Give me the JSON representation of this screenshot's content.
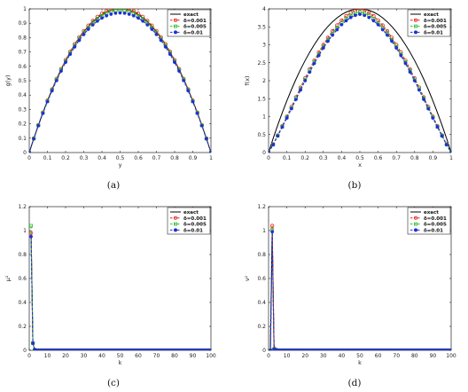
{
  "chart_data": [
    {
      "type": "line",
      "caption": "(a)",
      "xlabel": "y",
      "ylabel": "g(y)",
      "xlim": [
        0,
        1
      ],
      "ylim": [
        0,
        1
      ],
      "xticks": [
        "0",
        "0.1",
        "0.2",
        "0.3",
        "0.4",
        "0.5",
        "0.6",
        "0.7",
        "0.8",
        "0.9",
        "1"
      ],
      "yticks": [
        "0",
        "0.1",
        "0.2",
        "0.3",
        "0.4",
        "0.5",
        "0.6",
        "0.7",
        "0.8",
        "0.9",
        "1"
      ],
      "legend_placement": "top-right",
      "x": [
        0,
        0.025,
        0.05,
        0.075,
        0.1,
        0.125,
        0.15,
        0.175,
        0.2,
        0.225,
        0.25,
        0.275,
        0.3,
        0.325,
        0.35,
        0.375,
        0.4,
        0.425,
        0.45,
        0.475,
        0.5,
        0.525,
        0.55,
        0.575,
        0.6,
        0.625,
        0.65,
        0.675,
        0.7,
        0.725,
        0.75,
        0.775,
        0.8,
        0.825,
        0.85,
        0.875,
        0.9,
        0.925,
        0.95,
        0.975,
        1
      ],
      "series": [
        {
          "name": "exact",
          "color": "#000000",
          "style": "solid",
          "marker": "none",
          "values": [
            0,
            0.0975,
            0.19,
            0.2775,
            0.36,
            0.4375,
            0.51,
            0.5775,
            0.64,
            0.6975,
            0.75,
            0.7975,
            0.84,
            0.8775,
            0.91,
            0.9375,
            0.96,
            0.9775,
            0.99,
            0.9975,
            1,
            0.9975,
            0.99,
            0.9775,
            0.96,
            0.9375,
            0.91,
            0.8775,
            0.84,
            0.7975,
            0.75,
            0.6975,
            0.64,
            0.5775,
            0.51,
            0.4375,
            0.36,
            0.2775,
            0.19,
            0.0975,
            0
          ]
        },
        {
          "name": "δ=0.001",
          "color": "#e8251f",
          "style": "dashed",
          "marker": "circle",
          "values": [
            0,
            0.098,
            0.191,
            0.279,
            0.362,
            0.44,
            0.513,
            0.581,
            0.644,
            0.702,
            0.755,
            0.803,
            0.846,
            0.884,
            0.917,
            0.945,
            0.968,
            0.986,
            0.998,
            1.005,
            1.008,
            1.005,
            0.998,
            0.986,
            0.968,
            0.945,
            0.917,
            0.884,
            0.846,
            0.803,
            0.755,
            0.702,
            0.644,
            0.581,
            0.513,
            0.44,
            0.362,
            0.279,
            0.191,
            0.098,
            0
          ]
        },
        {
          "name": "δ=0.005",
          "color": "#2ebd2e",
          "style": "dashed",
          "marker": "square",
          "values": [
            0,
            0.097,
            0.189,
            0.276,
            0.358,
            0.435,
            0.507,
            0.574,
            0.636,
            0.693,
            0.745,
            0.792,
            0.834,
            0.871,
            0.903,
            0.93,
            0.952,
            0.969,
            0.981,
            0.988,
            0.99,
            0.988,
            0.981,
            0.969,
            0.952,
            0.93,
            0.903,
            0.871,
            0.834,
            0.792,
            0.745,
            0.693,
            0.636,
            0.574,
            0.507,
            0.435,
            0.358,
            0.276,
            0.189,
            0.097,
            0
          ]
        },
        {
          "name": "δ=0.01",
          "color": "#1f2fd8",
          "style": "dashed",
          "marker": "circle",
          "values": [
            0,
            0.096,
            0.187,
            0.273,
            0.354,
            0.43,
            0.501,
            0.567,
            0.628,
            0.684,
            0.735,
            0.781,
            0.822,
            0.858,
            0.889,
            0.915,
            0.936,
            0.952,
            0.963,
            0.97,
            0.972,
            0.97,
            0.963,
            0.952,
            0.936,
            0.915,
            0.889,
            0.858,
            0.822,
            0.781,
            0.735,
            0.684,
            0.628,
            0.567,
            0.501,
            0.43,
            0.354,
            0.273,
            0.187,
            0.096,
            0
          ]
        }
      ]
    },
    {
      "type": "line",
      "caption": "(b)",
      "xlabel": "x",
      "ylabel": "f(x)",
      "xlim": [
        0,
        1
      ],
      "ylim": [
        0,
        4
      ],
      "xticks": [
        "0",
        "0.1",
        "0.2",
        "0.3",
        "0.4",
        "0.5",
        "0.6",
        "0.7",
        "0.8",
        "0.9",
        "1"
      ],
      "yticks": [
        "0",
        "0.5",
        "1",
        "1.5",
        "2",
        "2.5",
        "3",
        "3.5",
        "4"
      ],
      "legend_placement": "top-right",
      "x": [
        0,
        0.025,
        0.05,
        0.075,
        0.1,
        0.125,
        0.15,
        0.175,
        0.2,
        0.225,
        0.25,
        0.275,
        0.3,
        0.325,
        0.35,
        0.375,
        0.4,
        0.425,
        0.45,
        0.475,
        0.5,
        0.525,
        0.55,
        0.575,
        0.6,
        0.625,
        0.65,
        0.675,
        0.7,
        0.725,
        0.75,
        0.775,
        0.8,
        0.825,
        0.85,
        0.875,
        0.9,
        0.925,
        0.95,
        0.975,
        1
      ],
      "series": [
        {
          "name": "exact",
          "color": "#000000",
          "style": "solid",
          "marker": "none",
          "values": [
            0,
            0.39,
            0.76,
            1.11,
            1.44,
            1.75,
            2.04,
            2.31,
            2.56,
            2.79,
            3.0,
            3.19,
            3.36,
            3.51,
            3.64,
            3.75,
            3.84,
            3.91,
            3.96,
            3.99,
            4.0,
            3.99,
            3.96,
            3.91,
            3.84,
            3.75,
            3.64,
            3.51,
            3.36,
            3.19,
            3.0,
            2.79,
            2.56,
            2.31,
            2.04,
            1.75,
            1.44,
            1.11,
            0.76,
            0.39,
            0
          ]
        },
        {
          "name": "δ=0.001",
          "color": "#e8251f",
          "style": "dashed",
          "marker": "circle",
          "values": [
            0,
            0.23,
            0.48,
            0.74,
            1.0,
            1.27,
            1.54,
            1.81,
            2.07,
            2.32,
            2.56,
            2.79,
            3.0,
            3.2,
            3.38,
            3.54,
            3.68,
            3.8,
            3.89,
            3.96,
            4.0,
            3.96,
            3.89,
            3.8,
            3.68,
            3.54,
            3.38,
            3.2,
            3.0,
            2.79,
            2.56,
            2.32,
            2.07,
            1.81,
            1.54,
            1.27,
            1.0,
            0.74,
            0.48,
            0.23,
            0
          ]
        },
        {
          "name": "δ=0.005",
          "color": "#2ebd2e",
          "style": "dashed",
          "marker": "square",
          "values": [
            0,
            0.22,
            0.47,
            0.72,
            0.98,
            1.24,
            1.51,
            1.77,
            2.03,
            2.28,
            2.52,
            2.74,
            2.95,
            3.14,
            3.32,
            3.48,
            3.61,
            3.73,
            3.82,
            3.88,
            3.91,
            3.88,
            3.82,
            3.73,
            3.61,
            3.48,
            3.32,
            3.14,
            2.95,
            2.74,
            2.52,
            2.28,
            2.03,
            1.77,
            1.51,
            1.24,
            0.98,
            0.72,
            0.47,
            0.22,
            0
          ]
        },
        {
          "name": "δ=0.01",
          "color": "#1f2fd8",
          "style": "dashed",
          "marker": "circle",
          "values": [
            0,
            0.22,
            0.46,
            0.71,
            0.96,
            1.22,
            1.48,
            1.74,
            2.0,
            2.24,
            2.48,
            2.7,
            2.91,
            3.1,
            3.27,
            3.42,
            3.56,
            3.67,
            3.76,
            3.82,
            3.85,
            3.82,
            3.76,
            3.67,
            3.56,
            3.42,
            3.27,
            3.1,
            2.91,
            2.7,
            2.48,
            2.24,
            2.0,
            1.74,
            1.48,
            1.22,
            0.96,
            0.71,
            0.46,
            0.22,
            0
          ]
        }
      ]
    },
    {
      "type": "line",
      "caption": "(c)",
      "xlabel": "k",
      "ylabel": "μ²",
      "xlim": [
        0,
        100
      ],
      "ylim": [
        0,
        1.2
      ],
      "xticks": [
        "0",
        "10",
        "20",
        "30",
        "40",
        "50",
        "60",
        "70",
        "80",
        "90",
        "100"
      ],
      "yticks": [
        "0",
        "0.2",
        "0.4",
        "0.6",
        "0.8",
        "1",
        "1.2"
      ],
      "legend_placement": "top-right",
      "x": [
        1,
        2,
        3,
        4,
        5,
        6,
        7,
        8,
        9,
        10,
        11,
        12,
        13,
        14,
        15,
        16,
        17,
        18,
        19,
        20,
        21,
        22,
        23,
        24,
        25,
        26,
        27,
        28,
        29,
        30,
        31,
        32,
        33,
        34,
        35,
        36,
        37,
        38,
        39,
        40,
        41,
        42,
        43,
        44,
        45,
        46,
        47,
        48,
        49,
        50,
        51,
        52,
        53,
        54,
        55,
        56,
        57,
        58,
        59,
        60,
        61,
        62,
        63,
        64,
        65,
        66,
        67,
        68,
        69,
        70,
        71,
        72,
        73,
        74,
        75,
        76,
        77,
        78,
        79,
        80,
        81,
        82,
        83,
        84,
        85,
        86,
        87,
        88,
        89,
        90,
        91,
        92,
        93,
        94,
        95,
        96,
        97,
        98,
        99,
        100
      ],
      "series": [
        {
          "name": "exact",
          "color": "#000000",
          "style": "solid",
          "marker": "none",
          "head": [
            1.0,
            0.06,
            0.005
          ],
          "tail": 0
        },
        {
          "name": "δ=0.001",
          "color": "#e8251f",
          "style": "dashed",
          "marker": "circle",
          "head": [
            0.98,
            0.06,
            0.005
          ],
          "tail": 0
        },
        {
          "name": "δ=0.005",
          "color": "#2ebd2e",
          "style": "dashed",
          "marker": "square",
          "head": [
            1.04,
            0.06,
            0.005
          ],
          "tail": 0
        },
        {
          "name": "δ=0.01",
          "color": "#1f2fd8",
          "style": "dashed",
          "marker": "circle",
          "head": [
            0.95,
            0.06,
            0.005
          ],
          "tail": 0
        }
      ]
    },
    {
      "type": "line",
      "caption": "(d)",
      "xlabel": "k",
      "ylabel": "ν²",
      "xlim": [
        0,
        100
      ],
      "ylim": [
        0,
        1.2
      ],
      "xticks": [
        "0",
        "10",
        "20",
        "30",
        "40",
        "50",
        "60",
        "70",
        "80",
        "90",
        "100"
      ],
      "yticks": [
        "0",
        "0.2",
        "0.4",
        "0.6",
        "0.8",
        "1",
        "1.2"
      ],
      "legend_placement": "top-right",
      "x": [
        1,
        2,
        3,
        4,
        5,
        6,
        7,
        8,
        9,
        10,
        11,
        12,
        13,
        14,
        15,
        16,
        17,
        18,
        19,
        20,
        21,
        22,
        23,
        24,
        25,
        26,
        27,
        28,
        29,
        30,
        31,
        32,
        33,
        34,
        35,
        36,
        37,
        38,
        39,
        40,
        41,
        42,
        43,
        44,
        45,
        46,
        47,
        48,
        49,
        50,
        51,
        52,
        53,
        54,
        55,
        56,
        57,
        58,
        59,
        60,
        61,
        62,
        63,
        64,
        65,
        66,
        67,
        68,
        69,
        70,
        71,
        72,
        73,
        74,
        75,
        76,
        77,
        78,
        79,
        80,
        81,
        82,
        83,
        84,
        85,
        86,
        87,
        88,
        89,
        90,
        91,
        92,
        93,
        94,
        95,
        96,
        97,
        98,
        99,
        100
      ],
      "series": [
        {
          "name": "exact",
          "color": "#000000",
          "style": "solid",
          "marker": "none",
          "head": [
            0.0,
            1.0,
            0.04,
            0.005
          ],
          "tail": 0
        },
        {
          "name": "δ=0.001",
          "color": "#e8251f",
          "style": "dashed",
          "marker": "circle",
          "head": [
            0.0,
            1.04,
            0.01,
            0.005
          ],
          "tail": 0
        },
        {
          "name": "δ=0.005",
          "color": "#2ebd2e",
          "style": "dashed",
          "marker": "square",
          "head": [
            0.0,
            1.01,
            0.01,
            0.005
          ],
          "tail": 0
        },
        {
          "name": "δ=0.01",
          "color": "#1f2fd8",
          "style": "dashed",
          "marker": "circle",
          "head": [
            0.0,
            0.99,
            0.01,
            0.005
          ],
          "tail": 0
        }
      ]
    }
  ]
}
